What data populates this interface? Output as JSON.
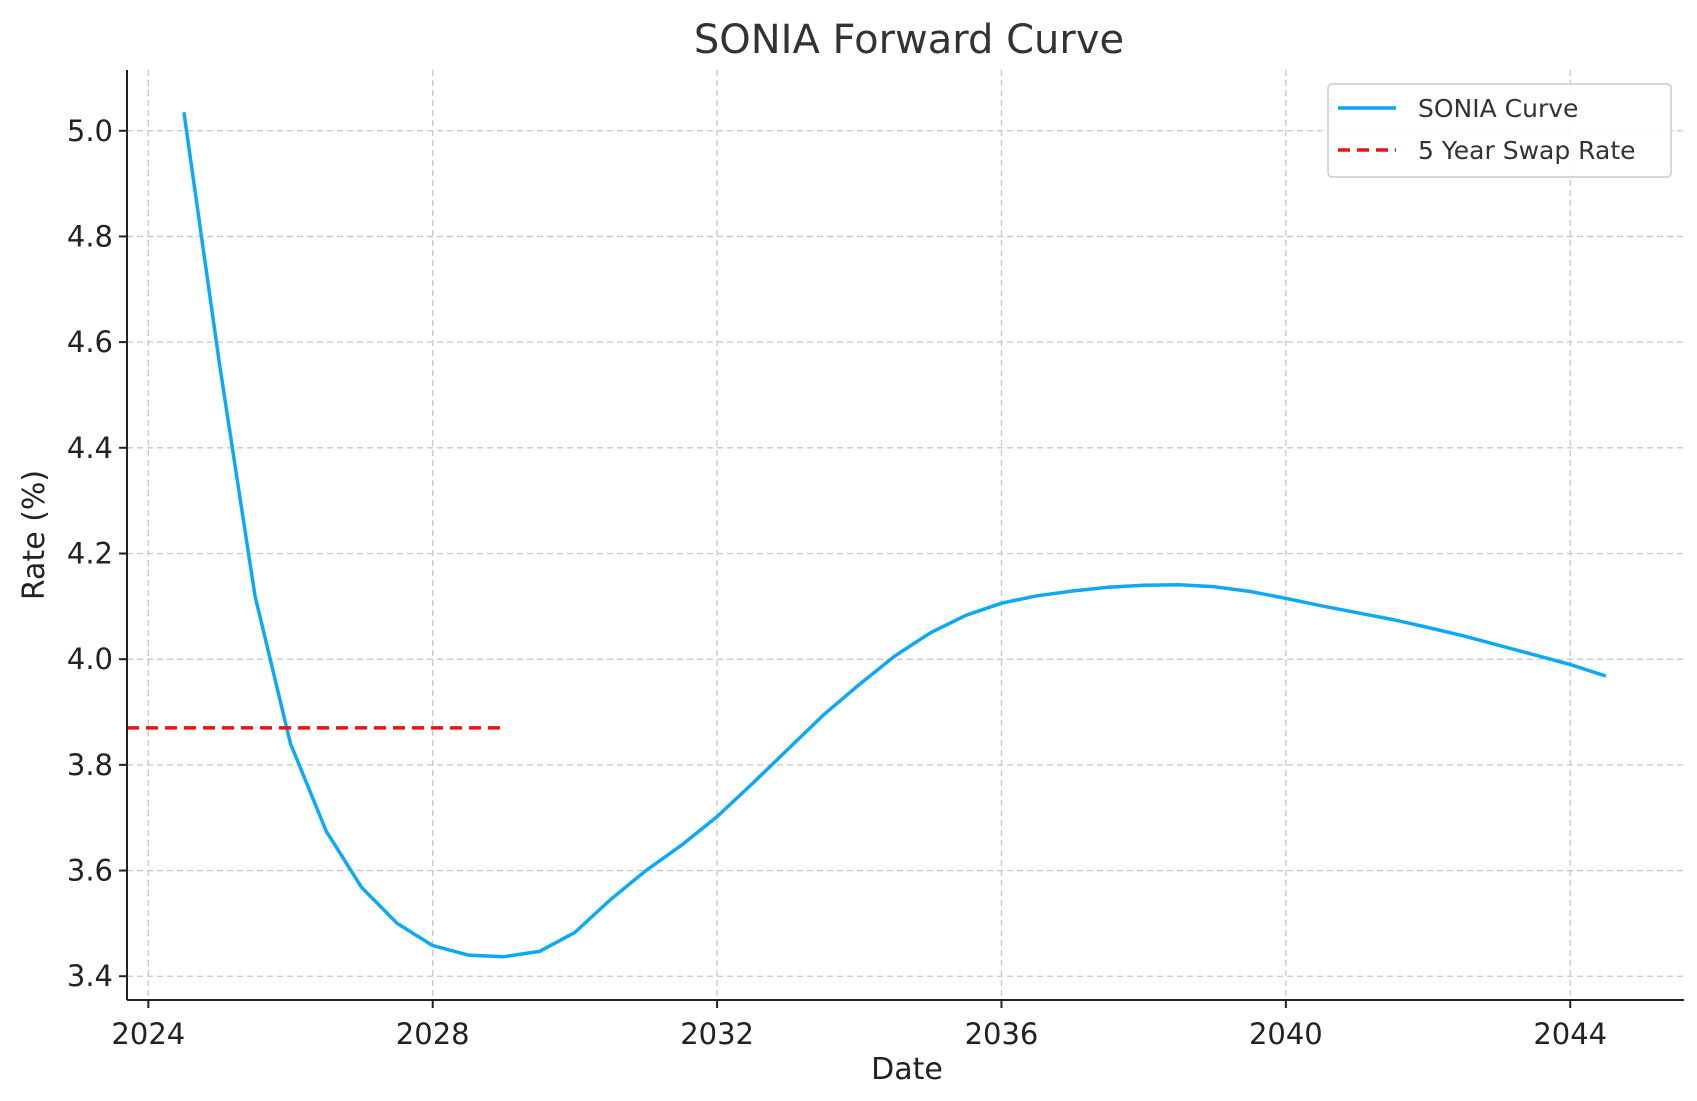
{
  "chart_data": {
    "type": "line",
    "title": "SONIA Forward Curve",
    "xlabel": "Date",
    "ylabel": "Rate (%)",
    "xlim": [
      2023.7,
      2045.6
    ],
    "ylim": [
      3.355,
      5.115
    ],
    "x_ticks": [
      2024,
      2028,
      2032,
      2036,
      2040,
      2044
    ],
    "x_tick_labels": [
      "2024",
      "2028",
      "2032",
      "2036",
      "2040",
      "2044"
    ],
    "y_ticks": [
      3.4,
      3.6,
      3.8,
      4.0,
      4.2,
      4.4,
      4.6,
      4.8,
      5.0
    ],
    "y_tick_labels": [
      "3.4",
      "3.6",
      "3.8",
      "4.0",
      "4.2",
      "4.4",
      "4.6",
      "4.8",
      "5.0"
    ],
    "grid": true,
    "legend_position": "top-right",
    "series": [
      {
        "name": "SONIA Curve",
        "color": "#0da9f5",
        "style": "solid",
        "x": [
          2024.5,
          2025.0,
          2025.5,
          2026.0,
          2026.5,
          2027.0,
          2027.5,
          2028.0,
          2028.5,
          2029.0,
          2029.5,
          2030.0,
          2030.5,
          2031.0,
          2031.5,
          2032.0,
          2032.5,
          2033.0,
          2033.5,
          2034.0,
          2034.5,
          2035.0,
          2035.5,
          2036.0,
          2036.5,
          2037.0,
          2037.5,
          2038.0,
          2038.5,
          2039.0,
          2039.5,
          2040.0,
          2040.5,
          2041.0,
          2041.5,
          2042.0,
          2042.5,
          2043.0,
          2043.5,
          2044.0,
          2044.5
        ],
        "values": [
          5.035,
          4.56,
          4.12,
          3.84,
          3.675,
          3.568,
          3.5,
          3.458,
          3.44,
          3.437,
          3.447,
          3.483,
          3.545,
          3.6,
          3.648,
          3.702,
          3.765,
          3.83,
          3.895,
          3.952,
          4.006,
          4.05,
          4.083,
          4.106,
          4.12,
          4.129,
          4.136,
          4.14,
          4.141,
          4.137,
          4.128,
          4.115,
          4.101,
          4.088,
          4.075,
          4.06,
          4.044,
          4.026,
          4.008,
          3.99,
          3.968
        ]
      },
      {
        "name": "5 Year Swap Rate",
        "color": "#ee1111",
        "style": "dashed",
        "x": [
          2023.7,
          2029.0
        ],
        "values": [
          3.87,
          3.87
        ]
      }
    ]
  }
}
